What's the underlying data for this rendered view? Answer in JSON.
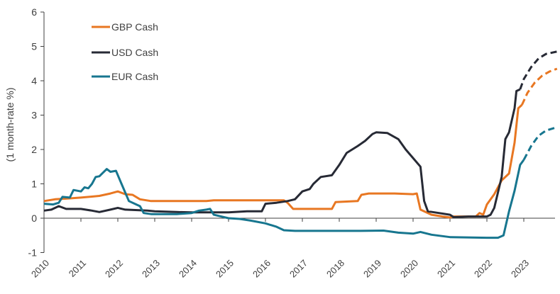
{
  "chart_data": {
    "type": "line",
    "title": "",
    "xlabel": "",
    "ylabel": "(1 month-rate %)",
    "xlim": [
      2010,
      2023.9
    ],
    "ylim": [
      -1,
      6
    ],
    "yticks": [
      -1,
      0,
      1,
      2,
      3,
      4,
      5,
      6
    ],
    "xticks": [
      "2010",
      "2011",
      "2012",
      "2013",
      "2014",
      "2015",
      "2016",
      "2017",
      "2018",
      "2019",
      "2020",
      "2021",
      "2022",
      "2023"
    ],
    "grid": false,
    "legend_position": "top-left",
    "series": [
      {
        "name": "GBP Cash",
        "color": "#E87722",
        "actual": [
          [
            2010,
            0.5
          ],
          [
            2010.3,
            0.55
          ],
          [
            2010.6,
            0.57
          ],
          [
            2011,
            0.6
          ],
          [
            2011.5,
            0.65
          ],
          [
            2011.8,
            0.72
          ],
          [
            2012.0,
            0.78
          ],
          [
            2012.2,
            0.7
          ],
          [
            2012.4,
            0.68
          ],
          [
            2012.6,
            0.55
          ],
          [
            2012.9,
            0.5
          ],
          [
            2014.4,
            0.5
          ],
          [
            2014.6,
            0.52
          ],
          [
            2016.5,
            0.52
          ],
          [
            2016.6,
            0.45
          ],
          [
            2016.75,
            0.27
          ],
          [
            2017.8,
            0.27
          ],
          [
            2017.9,
            0.47
          ],
          [
            2018.5,
            0.5
          ],
          [
            2018.6,
            0.68
          ],
          [
            2018.8,
            0.72
          ],
          [
            2019.5,
            0.72
          ],
          [
            2020.0,
            0.7
          ],
          [
            2020.1,
            0.72
          ],
          [
            2020.2,
            0.25
          ],
          [
            2020.5,
            0.1
          ],
          [
            2020.8,
            0.05
          ],
          [
            2021.0,
            0.02
          ],
          [
            2021.1,
            0.05
          ],
          [
            2021.7,
            0.05
          ],
          [
            2021.8,
            0.15
          ],
          [
            2021.9,
            0.1
          ],
          [
            2022.0,
            0.4
          ],
          [
            2022.2,
            0.7
          ],
          [
            2022.4,
            1.1
          ],
          [
            2022.6,
            1.3
          ],
          [
            2022.75,
            2.2
          ],
          [
            2022.85,
            3.2
          ],
          [
            2022.95,
            3.3
          ]
        ],
        "forecast": [
          [
            2022.95,
            3.3
          ],
          [
            2023.1,
            3.65
          ],
          [
            2023.3,
            3.95
          ],
          [
            2023.5,
            4.15
          ],
          [
            2023.7,
            4.27
          ],
          [
            2023.9,
            4.35
          ]
        ]
      },
      {
        "name": "USD Cash",
        "color": "#272A35",
        "actual": [
          [
            2010,
            0.22
          ],
          [
            2010.2,
            0.25
          ],
          [
            2010.4,
            0.35
          ],
          [
            2010.6,
            0.27
          ],
          [
            2011.0,
            0.27
          ],
          [
            2011.3,
            0.22
          ],
          [
            2011.5,
            0.18
          ],
          [
            2011.8,
            0.25
          ],
          [
            2012.0,
            0.3
          ],
          [
            2012.2,
            0.25
          ],
          [
            2012.8,
            0.22
          ],
          [
            2013.0,
            0.2
          ],
          [
            2013.6,
            0.18
          ],
          [
            2014.0,
            0.17
          ],
          [
            2015.0,
            0.17
          ],
          [
            2015.5,
            0.2
          ],
          [
            2015.9,
            0.2
          ],
          [
            2016.0,
            0.42
          ],
          [
            2016.3,
            0.45
          ],
          [
            2016.6,
            0.5
          ],
          [
            2016.8,
            0.55
          ],
          [
            2017.0,
            0.78
          ],
          [
            2017.2,
            0.85
          ],
          [
            2017.3,
            1.0
          ],
          [
            2017.5,
            1.2
          ],
          [
            2017.8,
            1.25
          ],
          [
            2018.0,
            1.55
          ],
          [
            2018.2,
            1.9
          ],
          [
            2018.5,
            2.1
          ],
          [
            2018.7,
            2.25
          ],
          [
            2018.9,
            2.45
          ],
          [
            2019.0,
            2.5
          ],
          [
            2019.3,
            2.48
          ],
          [
            2019.6,
            2.3
          ],
          [
            2019.8,
            2.0
          ],
          [
            2020.0,
            1.75
          ],
          [
            2020.2,
            1.5
          ],
          [
            2020.3,
            0.5
          ],
          [
            2020.4,
            0.2
          ],
          [
            2020.7,
            0.15
          ],
          [
            2021.0,
            0.1
          ],
          [
            2021.1,
            0.03
          ],
          [
            2021.5,
            0.05
          ],
          [
            2022.0,
            0.05
          ],
          [
            2022.1,
            0.1
          ],
          [
            2022.2,
            0.3
          ],
          [
            2022.4,
            1.2
          ],
          [
            2022.5,
            2.3
          ],
          [
            2022.6,
            2.5
          ],
          [
            2022.75,
            3.2
          ],
          [
            2022.8,
            3.7
          ],
          [
            2022.9,
            3.75
          ]
        ],
        "forecast": [
          [
            2022.9,
            3.75
          ],
          [
            2023.0,
            4.05
          ],
          [
            2023.2,
            4.4
          ],
          [
            2023.4,
            4.65
          ],
          [
            2023.6,
            4.78
          ],
          [
            2023.9,
            4.85
          ]
        ]
      },
      {
        "name": "EUR Cash",
        "color": "#17768F",
        "actual": [
          [
            2010,
            0.42
          ],
          [
            2010.25,
            0.4
          ],
          [
            2010.4,
            0.45
          ],
          [
            2010.5,
            0.62
          ],
          [
            2010.7,
            0.6
          ],
          [
            2010.8,
            0.82
          ],
          [
            2011.0,
            0.78
          ],
          [
            2011.1,
            0.9
          ],
          [
            2011.2,
            0.87
          ],
          [
            2011.3,
            1.0
          ],
          [
            2011.4,
            1.2
          ],
          [
            2011.5,
            1.22
          ],
          [
            2011.7,
            1.43
          ],
          [
            2011.8,
            1.35
          ],
          [
            2011.95,
            1.38
          ],
          [
            2012.1,
            1.0
          ],
          [
            2012.3,
            0.5
          ],
          [
            2012.5,
            0.4
          ],
          [
            2012.6,
            0.35
          ],
          [
            2012.7,
            0.15
          ],
          [
            2012.9,
            0.12
          ],
          [
            2013.6,
            0.12
          ],
          [
            2014.0,
            0.15
          ],
          [
            2014.2,
            0.22
          ],
          [
            2014.4,
            0.25
          ],
          [
            2014.5,
            0.27
          ],
          [
            2014.6,
            0.1
          ],
          [
            2014.8,
            0.05
          ],
          [
            2015.0,
            0.0
          ],
          [
            2015.3,
            -0.02
          ],
          [
            2015.6,
            -0.07
          ],
          [
            2016.0,
            -0.15
          ],
          [
            2016.3,
            -0.25
          ],
          [
            2016.5,
            -0.35
          ],
          [
            2016.8,
            -0.37
          ],
          [
            2017.5,
            -0.37
          ],
          [
            2018.5,
            -0.37
          ],
          [
            2019.2,
            -0.36
          ],
          [
            2019.6,
            -0.42
          ],
          [
            2020.0,
            -0.45
          ],
          [
            2020.2,
            -0.4
          ],
          [
            2020.5,
            -0.48
          ],
          [
            2021.0,
            -0.55
          ],
          [
            2022.0,
            -0.57
          ],
          [
            2022.3,
            -0.57
          ],
          [
            2022.45,
            -0.5
          ],
          [
            2022.6,
            0.2
          ],
          [
            2022.75,
            0.8
          ],
          [
            2022.85,
            1.3
          ],
          [
            2022.9,
            1.55
          ],
          [
            2023.0,
            1.7
          ]
        ],
        "forecast": [
          [
            2023.0,
            1.7
          ],
          [
            2023.2,
            2.1
          ],
          [
            2023.4,
            2.4
          ],
          [
            2023.6,
            2.55
          ],
          [
            2023.9,
            2.65
          ]
        ]
      }
    ]
  }
}
